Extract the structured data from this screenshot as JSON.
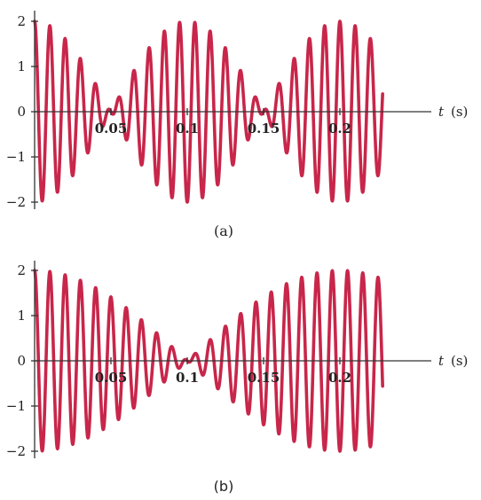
{
  "chart_data": [
    {
      "type": "line",
      "panel_label": "(a)",
      "xlabel_var": "t",
      "xlabel_unit": "(s)",
      "xlim": [
        0,
        0.235
      ],
      "ylim": [
        -2,
        2
      ],
      "yticks": [
        {
          "value": 2,
          "label": "2"
        },
        {
          "value": 1,
          "label": "1"
        },
        {
          "value": 0,
          "label": "0"
        },
        {
          "value": -1,
          "label": "−1"
        },
        {
          "value": -2,
          "label": "−2"
        }
      ],
      "xticks": [
        {
          "value": 0.05,
          "label": "0.05"
        },
        {
          "value": 0.1,
          "label": "0.1"
        },
        {
          "value": 0.15,
          "label": "0.15"
        },
        {
          "value": 0.2,
          "label": "0.2"
        }
      ],
      "series": [
        {
          "signal": "cos(2π·105·t) + cos(2π·95·t)",
          "components_hz": [
            105,
            95
          ],
          "amplitudes": [
            1,
            1
          ],
          "t_range": [
            0,
            0.228
          ],
          "color": "#c8264a"
        }
      ]
    },
    {
      "type": "line",
      "panel_label": "(b)",
      "xlabel_var": "t",
      "xlabel_unit": "(s)",
      "xlim": [
        0,
        0.235
      ],
      "ylim": [
        -2,
        2
      ],
      "yticks": [
        {
          "value": 2,
          "label": "2"
        },
        {
          "value": 1,
          "label": "1"
        },
        {
          "value": 0,
          "label": "0"
        },
        {
          "value": -1,
          "label": "−1"
        },
        {
          "value": -2,
          "label": "−2"
        }
      ],
      "xticks": [
        {
          "value": 0.05,
          "label": "0.05"
        },
        {
          "value": 0.1,
          "label": "0.1"
        },
        {
          "value": 0.15,
          "label": "0.15"
        },
        {
          "value": 0.2,
          "label": "0.2"
        }
      ],
      "series": [
        {
          "signal": "cos(2π·102.5·t) + cos(2π·97.5·t)",
          "components_hz": [
            102.5,
            97.5
          ],
          "amplitudes": [
            1,
            1
          ],
          "t_range": [
            0,
            0.228
          ],
          "color": "#c8264a"
        }
      ]
    }
  ]
}
